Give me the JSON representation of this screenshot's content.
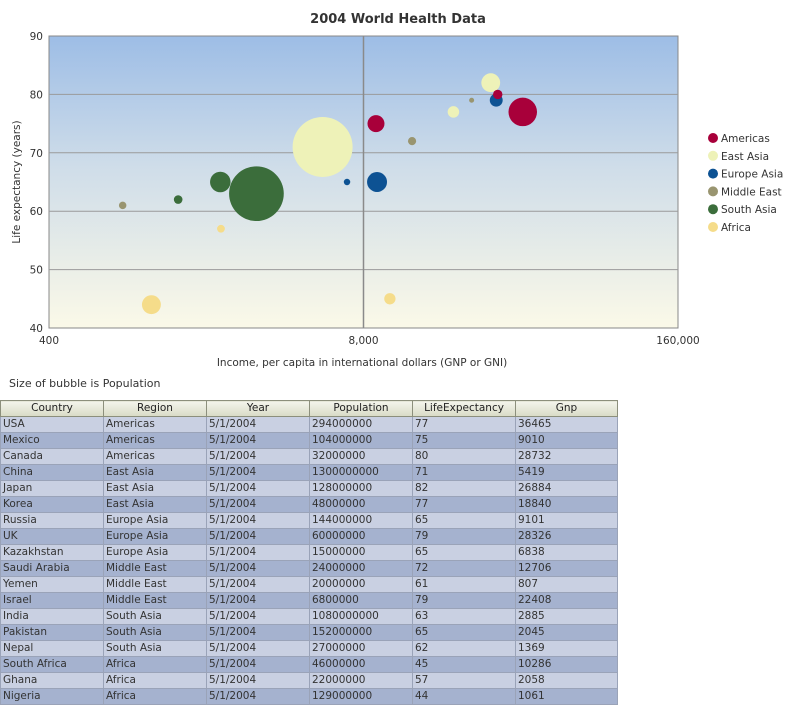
{
  "chart_data": {
    "type": "scatter",
    "title": "2004 World Health Data",
    "xlabel": "Income, per capita in international dollars (GNP or GNI)",
    "ylabel": "Life expectancy (years)",
    "xscale": "log",
    "xlim": [
      400,
      160000
    ],
    "ylim": [
      40,
      90
    ],
    "xticks": [
      "400",
      "8,000",
      "160,000"
    ],
    "yticks": [
      "40",
      "50",
      "60",
      "70",
      "80",
      "90"
    ],
    "grid": true,
    "legend_position": "right",
    "series": [
      {
        "name": "Americas",
        "color": "#a8003a",
        "points": [
          {
            "label": "USA",
            "x": 36465,
            "y": 77,
            "size": 294000000
          },
          {
            "label": "Mexico",
            "x": 9010,
            "y": 75,
            "size": 104000000
          },
          {
            "label": "Canada",
            "x": 28732,
            "y": 80,
            "size": 32000000
          }
        ]
      },
      {
        "name": "East Asia",
        "color": "#eef2b8",
        "points": [
          {
            "label": "China",
            "x": 5419,
            "y": 71,
            "size": 1300000000
          },
          {
            "label": "Japan",
            "x": 26884,
            "y": 82,
            "size": 128000000
          },
          {
            "label": "Korea",
            "x": 18840,
            "y": 77,
            "size": 48000000
          }
        ]
      },
      {
        "name": "Europe Asia",
        "color": "#0d5293",
        "points": [
          {
            "label": "Russia",
            "x": 9101,
            "y": 65,
            "size": 144000000
          },
          {
            "label": "UK",
            "x": 28326,
            "y": 79,
            "size": 60000000
          },
          {
            "label": "Kazakhstan",
            "x": 6838,
            "y": 65,
            "size": 15000000
          }
        ]
      },
      {
        "name": "Middle East",
        "color": "#999570",
        "points": [
          {
            "label": "Saudi Arabia",
            "x": 12706,
            "y": 72,
            "size": 24000000
          },
          {
            "label": "Yemen",
            "x": 807,
            "y": 61,
            "size": 20000000
          },
          {
            "label": "Israel",
            "x": 22408,
            "y": 79,
            "size": 6800000
          }
        ]
      },
      {
        "name": "South Asia",
        "color": "#3b6d3b",
        "points": [
          {
            "label": "India",
            "x": 2885,
            "y": 63,
            "size": 1080000000
          },
          {
            "label": "Pakistan",
            "x": 2045,
            "y": 65,
            "size": 152000000
          },
          {
            "label": "Nepal",
            "x": 1369,
            "y": 62,
            "size": 27000000
          }
        ]
      },
      {
        "name": "Africa",
        "color": "#f5dc8a",
        "points": [
          {
            "label": "South Africa",
            "x": 10286,
            "y": 45,
            "size": 46000000
          },
          {
            "label": "Ghana",
            "x": 2058,
            "y": 57,
            "size": 22000000
          },
          {
            "label": "Nigeria",
            "x": 1061,
            "y": 44,
            "size": 129000000
          }
        ]
      }
    ]
  },
  "size_note": "Size of bubble is Population",
  "table": {
    "columns": [
      "Country",
      "Region",
      "Year",
      "Population",
      "LifeExpectancy",
      "Gnp"
    ],
    "rows": [
      [
        "USA",
        "Americas",
        "5/1/2004",
        "294000000",
        "77",
        "36465"
      ],
      [
        "Mexico",
        "Americas",
        "5/1/2004",
        "104000000",
        "75",
        "9010"
      ],
      [
        "Canada",
        "Americas",
        "5/1/2004",
        "32000000",
        "80",
        "28732"
      ],
      [
        "China",
        "East Asia",
        "5/1/2004",
        "1300000000",
        "71",
        "5419"
      ],
      [
        "Japan",
        "East Asia",
        "5/1/2004",
        "128000000",
        "82",
        "26884"
      ],
      [
        "Korea",
        "East Asia",
        "5/1/2004",
        "48000000",
        "77",
        "18840"
      ],
      [
        "Russia",
        "Europe Asia",
        "5/1/2004",
        "144000000",
        "65",
        "9101"
      ],
      [
        "UK",
        "Europe Asia",
        "5/1/2004",
        "60000000",
        "79",
        "28326"
      ],
      [
        "Kazakhstan",
        "Europe Asia",
        "5/1/2004",
        "15000000",
        "65",
        "6838"
      ],
      [
        "Saudi Arabia",
        "Middle East",
        "5/1/2004",
        "24000000",
        "72",
        "12706"
      ],
      [
        "Yemen",
        "Middle East",
        "5/1/2004",
        "20000000",
        "61",
        "807"
      ],
      [
        "Israel",
        "Middle East",
        "5/1/2004",
        "6800000",
        "79",
        "22408"
      ],
      [
        "India",
        "South Asia",
        "5/1/2004",
        "1080000000",
        "63",
        "2885"
      ],
      [
        "Pakistan",
        "South Asia",
        "5/1/2004",
        "152000000",
        "65",
        "2045"
      ],
      [
        "Nepal",
        "South Asia",
        "5/1/2004",
        "27000000",
        "62",
        "1369"
      ],
      [
        "South Africa",
        "Africa",
        "5/1/2004",
        "46000000",
        "45",
        "10286"
      ],
      [
        "Ghana",
        "Africa",
        "5/1/2004",
        "22000000",
        "57",
        "2058"
      ],
      [
        "Nigeria",
        "Africa",
        "5/1/2004",
        "129000000",
        "44",
        "1061"
      ]
    ]
  }
}
